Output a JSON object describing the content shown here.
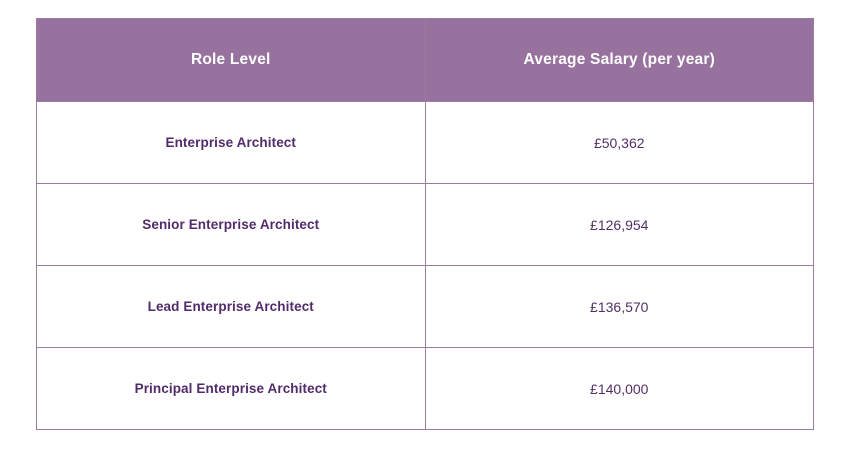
{
  "colors": {
    "header_bg": "#98729f",
    "border": "#9c7ba2",
    "header_text": "#ffffff",
    "role_text": "#522b6b",
    "salary_text": "#533066",
    "page_bg": "#ffffff"
  },
  "table": {
    "columns": [
      {
        "label": "Role Level"
      },
      {
        "label": "Average Salary (per year)"
      }
    ],
    "rows": [
      {
        "role": "Enterprise Architect",
        "salary": "£50,362"
      },
      {
        "role": "Senior Enterprise Architect",
        "salary": "£126,954"
      },
      {
        "role": "Lead Enterprise Architect",
        "salary": "£136,570"
      },
      {
        "role": "Principal Enterprise Architect",
        "salary": "£140,000"
      }
    ]
  },
  "chart_data": {
    "type": "table",
    "title": "",
    "columns": [
      "Role Level",
      "Average Salary (per year)"
    ],
    "rows": [
      [
        "Enterprise Architect",
        "£50,362"
      ],
      [
        "Senior Enterprise Architect",
        "£126,954"
      ],
      [
        "Lead Enterprise Architect",
        "£136,570"
      ],
      [
        "Principal Enterprise Architect",
        "£140,000"
      ]
    ],
    "categories": [
      "Enterprise Architect",
      "Senior Enterprise Architect",
      "Lead Enterprise Architect",
      "Principal Enterprise Architect"
    ],
    "values": [
      50362,
      126954,
      136570,
      140000
    ],
    "value_unit": "GBP per year",
    "currency_symbol": "£"
  }
}
